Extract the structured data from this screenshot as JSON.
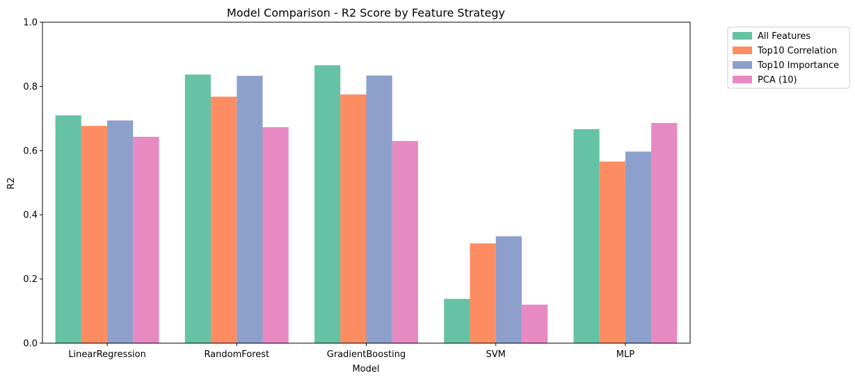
{
  "chart_data": {
    "type": "bar",
    "title": "Model Comparison - R2 Score by Feature Strategy",
    "xlabel": "Model",
    "ylabel": "R2",
    "ylim": [
      0,
      1.0
    ],
    "yticks": [
      "0.0",
      "0.2",
      "0.4",
      "0.6",
      "0.8",
      "1.0"
    ],
    "categories": [
      "LinearRegression",
      "RandomForest",
      "GradientBoosting",
      "SVM",
      "MLP"
    ],
    "series": [
      {
        "name": "All Features",
        "color": "#66c2a5",
        "values": [
          0.71,
          0.837,
          0.866,
          0.138,
          0.667
        ]
      },
      {
        "name": "Top10 Correlation",
        "color": "#fc8d62",
        "values": [
          0.677,
          0.768,
          0.775,
          0.311,
          0.566
        ]
      },
      {
        "name": "Top10 Importance",
        "color": "#8da0cb",
        "values": [
          0.694,
          0.833,
          0.834,
          0.333,
          0.597
        ]
      },
      {
        "name": "PCA (10)",
        "color": "#e78ac3",
        "values": [
          0.643,
          0.673,
          0.63,
          0.12,
          0.686
        ]
      }
    ],
    "legend_position": "outside-top-right",
    "grid": false
  }
}
